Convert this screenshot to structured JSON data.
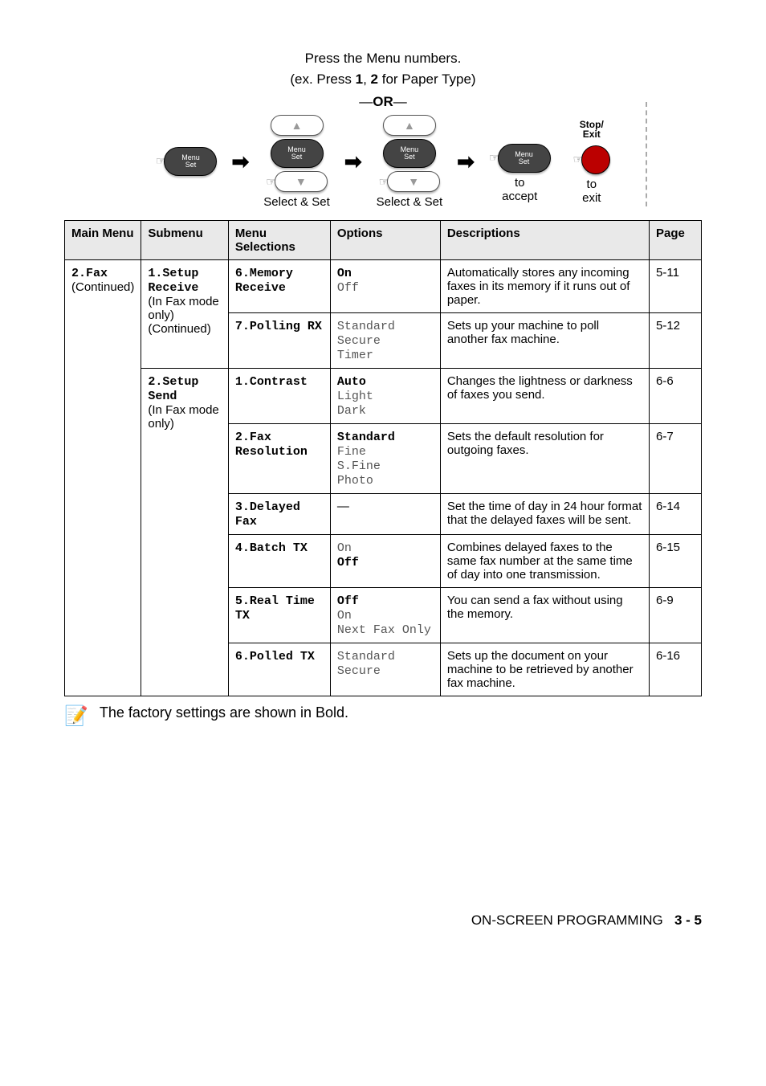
{
  "instructions": {
    "line1": "Press the Menu numbers.",
    "line2_prefix": "(ex. Press ",
    "line2_b1": "1",
    "line2_mid": ", ",
    "line2_b2": "2",
    "line2_suffix": " for Paper Type)",
    "or_prefix": "—",
    "or_text": "OR",
    "or_suffix": "—"
  },
  "buttons": {
    "menu_set_top": "Menu",
    "menu_set_bottom": "Set",
    "select_set": "Select & Set",
    "to": "to",
    "accept": "accept",
    "exit": "exit",
    "stop_exit_top": "Stop/",
    "stop_exit_bottom": "Exit"
  },
  "table": {
    "headers": {
      "main": "Main Menu",
      "sub": "Submenu",
      "sel": "Menu Selections",
      "opt": "Options",
      "desc": "Descriptions",
      "page": "Page"
    },
    "main_menu": {
      "code": "2.Fax",
      "note": "(Continued)"
    },
    "sub1": {
      "l1": "1.Setup",
      "l2": "Receive",
      "l3": "(In Fax mode only)",
      "l4": "(Continued)"
    },
    "sub2": {
      "l1": "2.Setup Send",
      "l2": "(In Fax mode only)"
    },
    "rows": [
      {
        "sel_num": "6.",
        "sel_rest": "Memory Receive",
        "opts": [
          {
            "t": "On",
            "b": true
          },
          {
            "t": "Off",
            "b": false
          }
        ],
        "desc": "Automatically stores any incoming faxes in its memory if it runs out of paper.",
        "page": "5-11"
      },
      {
        "sel_num": "7.",
        "sel_rest": "Polling RX",
        "opts": [
          {
            "t": "Standard",
            "b": false
          },
          {
            "t": "Secure",
            "b": false
          },
          {
            "t": "Timer",
            "b": false
          }
        ],
        "desc": "Sets up your machine to poll another fax machine.",
        "page": "5-12"
      },
      {
        "sel_num": "1.",
        "sel_rest": "Contrast",
        "opts": [
          {
            "t": "Auto",
            "b": true
          },
          {
            "t": "Light",
            "b": false
          },
          {
            "t": "Dark",
            "b": false
          }
        ],
        "desc": "Changes the lightness or darkness of faxes you send.",
        "page": "6-6"
      },
      {
        "sel_num": "2.",
        "sel_rest": "Fax Resolution",
        "opts": [
          {
            "t": "Standard",
            "b": true
          },
          {
            "t": "Fine",
            "b": false
          },
          {
            "t": "S.Fine",
            "b": false
          },
          {
            "t": "Photo",
            "b": false
          }
        ],
        "desc": "Sets the default resolution for outgoing faxes.",
        "page": "6-7"
      },
      {
        "sel_num": "3.",
        "sel_rest": "Delayed Fax",
        "opts": [
          {
            "t": "—",
            "b": false,
            "plain": true
          }
        ],
        "desc": "Set the time of day in 24 hour format that the delayed faxes will be sent.",
        "page": "6-14"
      },
      {
        "sel_num": "4.",
        "sel_rest": "Batch TX",
        "opts": [
          {
            "t": "On",
            "b": false
          },
          {
            "t": "Off",
            "b": true
          }
        ],
        "desc": "Combines delayed faxes to the same fax number at the same time of day into one transmission.",
        "page": "6-15"
      },
      {
        "sel_num": "5.",
        "sel_rest": "Real Time TX",
        "opts": [
          {
            "t": "Off",
            "b": true
          },
          {
            "t": "On",
            "b": false
          },
          {
            "t": "Next Fax Only",
            "b": false
          }
        ],
        "desc": "You can send a fax without using the memory.",
        "page": "6-9"
      },
      {
        "sel_num": "6.",
        "sel_rest": "Polled TX",
        "opts": [
          {
            "t": "Standard",
            "b": false
          },
          {
            "t": "Secure",
            "b": false
          }
        ],
        "desc": "Sets up the document on your machine to be retrieved by another fax machine.",
        "page": "6-16"
      }
    ]
  },
  "note": "The factory settings are shown in Bold.",
  "footer": {
    "text": "ON-SCREEN PROGRAMMING",
    "page": "3 - 5"
  }
}
